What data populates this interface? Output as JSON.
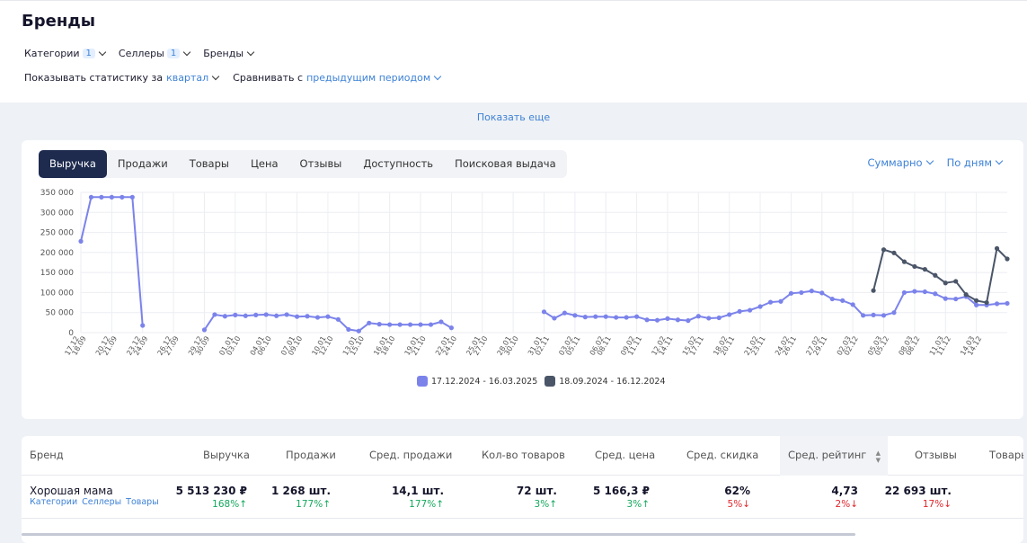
{
  "page": {
    "title": "Бренды"
  },
  "filters": [
    {
      "label": "Категории",
      "count": "1"
    },
    {
      "label": "Селлеры",
      "count": "1"
    },
    {
      "label": "Бренды",
      "count": ""
    }
  ],
  "stats_period": {
    "prefix": "Показывать статистику за",
    "value": "квартал"
  },
  "compare": {
    "prefix": "Сравнивать с",
    "value": "предыдущим периодом"
  },
  "show_more": "Показать еще",
  "tabs": [
    "Выручка",
    "Продажи",
    "Товары",
    "Цена",
    "Отзывы",
    "Доступность",
    "Поисковая выдача"
  ],
  "active_tab": "Выручка",
  "aggregation": "Суммарно",
  "granularity": "По дням",
  "colors": {
    "accent": "#3e82d6",
    "current_series": "#7b83eb",
    "previous_series": "#4a5568",
    "tab_active": "#1e2b4f",
    "up": "#13a85b",
    "down": "#e0262b"
  },
  "chart_data": {
    "type": "line",
    "y_ticks": [
      "350 000",
      "300 000",
      "250 000",
      "200 000",
      "150 000",
      "100 000",
      "50 000",
      "0"
    ],
    "ylim": [
      0,
      350000
    ],
    "x_labels": [
      [
        "17.12",
        "18.09"
      ],
      [
        "20.12",
        "21.09"
      ],
      [
        "23.12",
        "24.09"
      ],
      [
        "26.12",
        "27.09"
      ],
      [
        "29.12",
        "30.09"
      ],
      [
        "01.01",
        "03.10"
      ],
      [
        "04.01",
        "06.10"
      ],
      [
        "07.01",
        "09.10"
      ],
      [
        "10.01",
        "12.10"
      ],
      [
        "13.01",
        "15.10"
      ],
      [
        "16.01",
        "18.10"
      ],
      [
        "19.01",
        "21.10"
      ],
      [
        "22.01",
        "24.10"
      ],
      [
        "25.01",
        "27.10"
      ],
      [
        "28.01",
        "30.10"
      ],
      [
        "31.01",
        "02.11"
      ],
      [
        "03.02",
        "05.11"
      ],
      [
        "06.02",
        "08.11"
      ],
      [
        "09.02",
        "11.11"
      ],
      [
        "12.02",
        "14.11"
      ],
      [
        "15.02",
        "17.11"
      ],
      [
        "18.02",
        "20.11"
      ],
      [
        "21.02",
        "23.11"
      ],
      [
        "24.02",
        "26.11"
      ],
      [
        "27.02",
        "29.11"
      ],
      [
        "02.03",
        "02.12"
      ],
      [
        "05.03",
        "05.12"
      ],
      [
        "08.03",
        "08.12"
      ],
      [
        "11.03",
        "11.12"
      ],
      [
        "14.03",
        "14.12"
      ]
    ],
    "legend_position": "bottom-center",
    "grid": true,
    "series": [
      {
        "name": "17.12.2024 - 16.03.2025",
        "values": [
          228000,
          338000,
          338000,
          338000,
          338000,
          338000,
          18000,
          null,
          null,
          null,
          null,
          null,
          7000,
          45000,
          41000,
          44000,
          42000,
          44000,
          45000,
          42000,
          45000,
          40000,
          41000,
          38000,
          40000,
          33000,
          8000,
          4000,
          24000,
          21000,
          20000,
          20000,
          20000,
          20000,
          20000,
          27000,
          12000,
          null,
          null,
          null,
          null,
          null,
          null,
          null,
          null,
          52000,
          36000,
          49000,
          43000,
          39000,
          40000,
          40000,
          38000,
          38000,
          40000,
          32000,
          31000,
          35000,
          32000,
          30000,
          41000,
          36000,
          37000,
          45000,
          53000,
          56000,
          65000,
          76000,
          78000,
          98000,
          100000,
          104000,
          99000,
          84000,
          80000,
          70000,
          43000,
          44000,
          43000,
          50000,
          100000,
          103000,
          102000,
          97000,
          85000,
          84000,
          90000,
          69000,
          69000,
          72000,
          73000
        ]
      },
      {
        "name": "18.09.2024 - 16.12.2024",
        "values": [
          null,
          null,
          null,
          null,
          null,
          null,
          null,
          null,
          null,
          null,
          null,
          null,
          null,
          null,
          null,
          null,
          null,
          null,
          null,
          null,
          null,
          null,
          null,
          null,
          null,
          null,
          null,
          null,
          null,
          null,
          null,
          null,
          null,
          null,
          null,
          null,
          null,
          null,
          null,
          null,
          null,
          null,
          null,
          null,
          null,
          null,
          null,
          null,
          null,
          null,
          null,
          null,
          null,
          null,
          null,
          null,
          null,
          null,
          null,
          null,
          null,
          null,
          null,
          null,
          null,
          null,
          null,
          null,
          null,
          null,
          null,
          null,
          null,
          null,
          null,
          null,
          null,
          105000,
          207000,
          199000,
          177000,
          165000,
          158000,
          143000,
          124000,
          128000,
          95000,
          80000,
          75000,
          210000,
          184000
        ]
      }
    ]
  },
  "table": {
    "headers": [
      "Бренд",
      "Выручка",
      "Продажи",
      "Сред. продажи",
      "Кол-во товаров",
      "Сред. цена",
      "Сред. скидка",
      "Сред. рейтинг",
      "Отзывы",
      "Товары"
    ],
    "sorted_column": "Сред. рейтинг",
    "rows": [
      {
        "brand": "Хорошая мама",
        "links": [
          "Категории",
          "Селлеры",
          "Товары"
        ],
        "cells": [
          {
            "value": "5 513 230 ₽",
            "delta": "168%",
            "dir": "up"
          },
          {
            "value": "1 268 шт.",
            "delta": "177%",
            "dir": "up"
          },
          {
            "value": "14,1 шт.",
            "delta": "177%",
            "dir": "up"
          },
          {
            "value": "72 шт.",
            "delta": "3%",
            "dir": "up"
          },
          {
            "value": "5 166,3 ₽",
            "delta": "3%",
            "dir": "up"
          },
          {
            "value": "62%",
            "delta": "5%",
            "dir": "down"
          },
          {
            "value": "4,73",
            "delta": "2%",
            "dir": "down"
          },
          {
            "value": "22 693 шт.",
            "delta": "17%",
            "dir": "down"
          }
        ]
      }
    ]
  }
}
